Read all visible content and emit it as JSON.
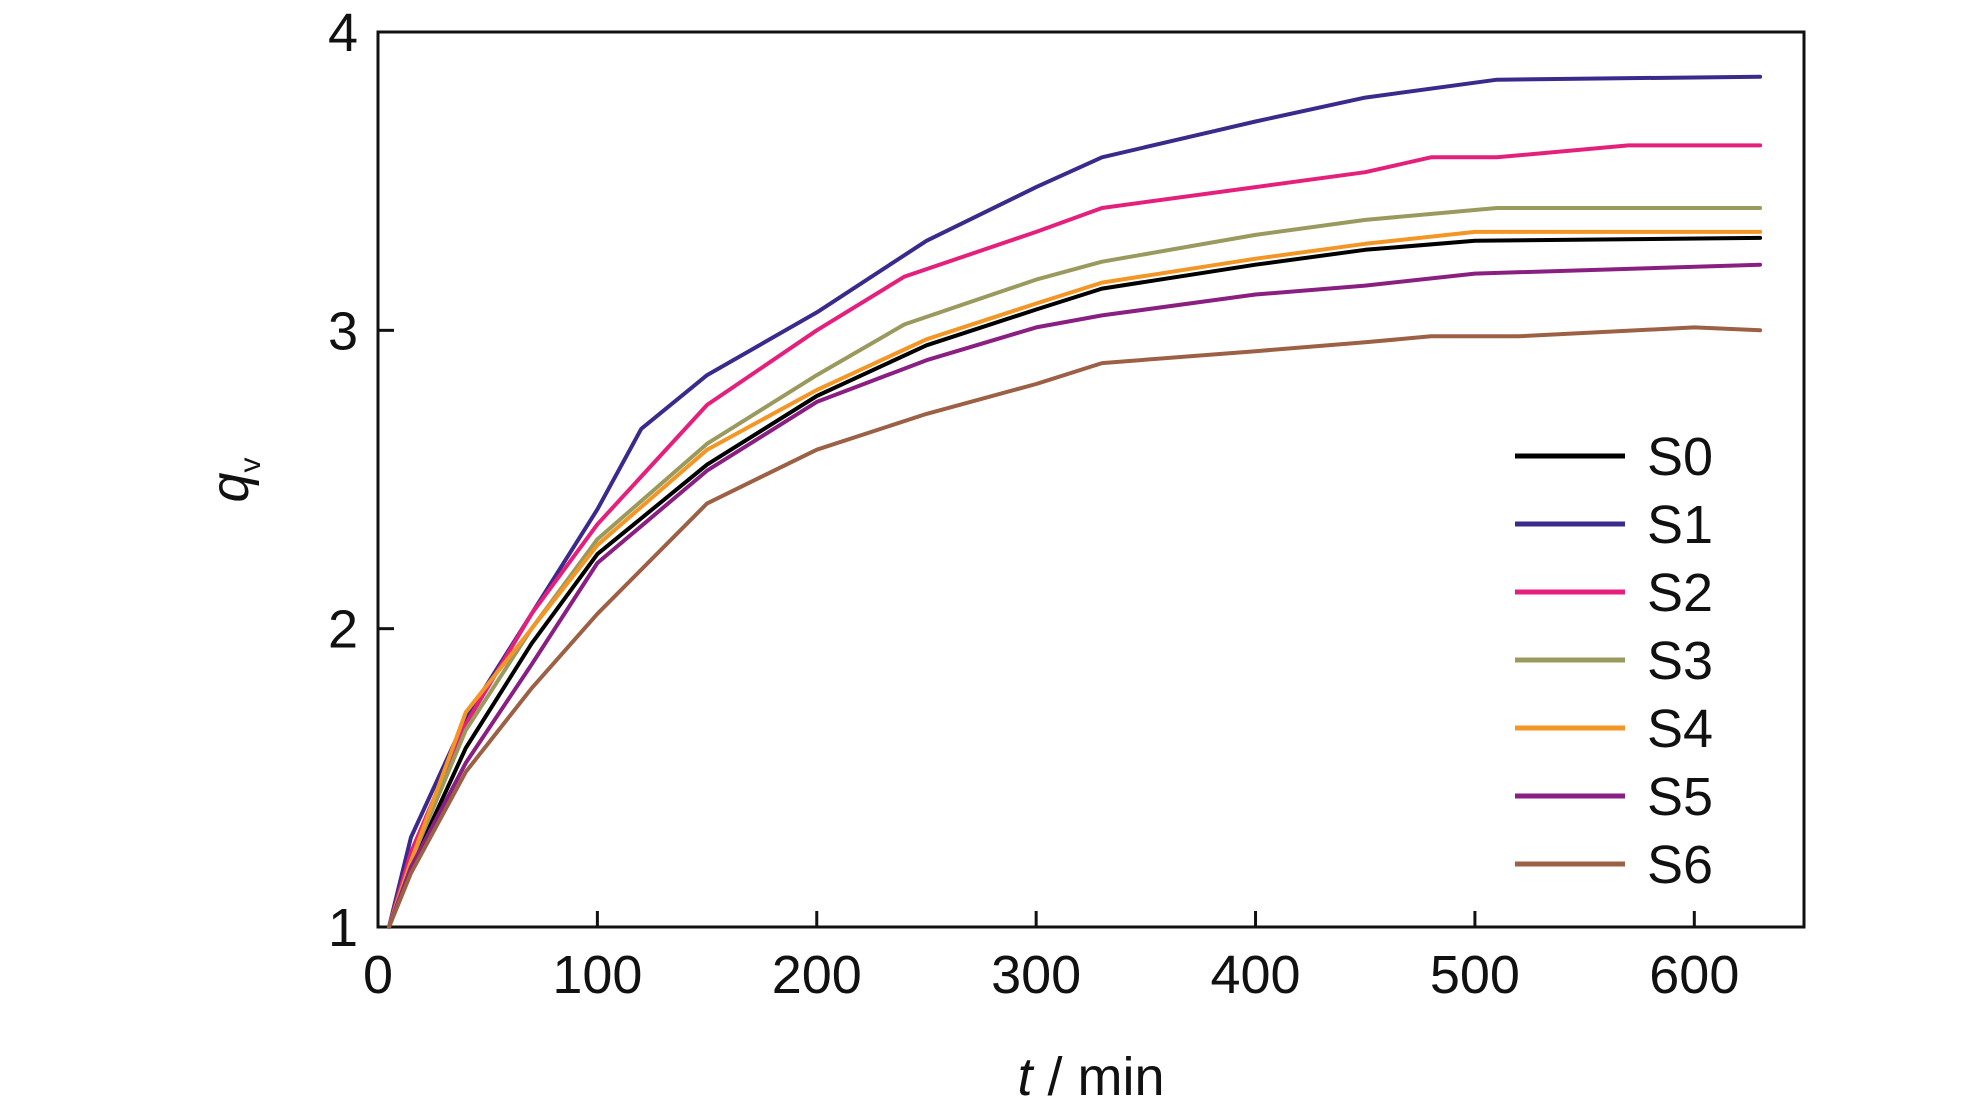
{
  "chart_data": {
    "type": "line",
    "title": "",
    "xlabel": {
      "var": "t",
      "unit": " / min"
    },
    "ylabel": {
      "var": "q",
      "sub": "v"
    },
    "xlim": [
      0,
      650
    ],
    "ylim": [
      1,
      4
    ],
    "xticks": [
      0,
      100,
      200,
      300,
      400,
      500,
      600
    ],
    "yticks": [
      1,
      2,
      3,
      4
    ],
    "grid": false,
    "legend_position": "right",
    "series": [
      {
        "name": "S0",
        "color": "#000000",
        "points": [
          [
            5,
            1.0
          ],
          [
            15,
            1.2
          ],
          [
            40,
            1.6
          ],
          [
            70,
            1.95
          ],
          [
            100,
            2.25
          ],
          [
            150,
            2.55
          ],
          [
            200,
            2.78
          ],
          [
            250,
            2.95
          ],
          [
            300,
            3.07
          ],
          [
            330,
            3.14
          ],
          [
            400,
            3.22
          ],
          [
            450,
            3.27
          ],
          [
            500,
            3.3
          ],
          [
            630,
            3.31
          ]
        ]
      },
      {
        "name": "S1",
        "color": "#3b2a8c",
        "points": [
          [
            5,
            1.0
          ],
          [
            15,
            1.3
          ],
          [
            40,
            1.7
          ],
          [
            70,
            2.05
          ],
          [
            100,
            2.4
          ],
          [
            120,
            2.67
          ],
          [
            150,
            2.85
          ],
          [
            200,
            3.06
          ],
          [
            250,
            3.3
          ],
          [
            300,
            3.48
          ],
          [
            330,
            3.58
          ],
          [
            400,
            3.7
          ],
          [
            450,
            3.78
          ],
          [
            510,
            3.84
          ],
          [
            630,
            3.85
          ]
        ]
      },
      {
        "name": "S2",
        "color": "#e5207c",
        "points": [
          [
            5,
            1.0
          ],
          [
            15,
            1.25
          ],
          [
            40,
            1.68
          ],
          [
            70,
            2.05
          ],
          [
            100,
            2.35
          ],
          [
            150,
            2.75
          ],
          [
            200,
            3.0
          ],
          [
            240,
            3.18
          ],
          [
            300,
            3.33
          ],
          [
            330,
            3.41
          ],
          [
            400,
            3.48
          ],
          [
            450,
            3.53
          ],
          [
            480,
            3.58
          ],
          [
            510,
            3.58
          ],
          [
            570,
            3.62
          ],
          [
            630,
            3.62
          ]
        ]
      },
      {
        "name": "S3",
        "color": "#9a9a5e",
        "points": [
          [
            5,
            1.0
          ],
          [
            15,
            1.22
          ],
          [
            40,
            1.66
          ],
          [
            70,
            2.0
          ],
          [
            100,
            2.3
          ],
          [
            150,
            2.62
          ],
          [
            200,
            2.85
          ],
          [
            240,
            3.02
          ],
          [
            300,
            3.17
          ],
          [
            330,
            3.23
          ],
          [
            400,
            3.32
          ],
          [
            450,
            3.37
          ],
          [
            510,
            3.41
          ],
          [
            630,
            3.41
          ]
        ]
      },
      {
        "name": "S4",
        "color": "#f39625",
        "points": [
          [
            5,
            1.0
          ],
          [
            15,
            1.22
          ],
          [
            40,
            1.72
          ],
          [
            70,
            2.0
          ],
          [
            100,
            2.28
          ],
          [
            150,
            2.6
          ],
          [
            200,
            2.8
          ],
          [
            250,
            2.97
          ],
          [
            300,
            3.09
          ],
          [
            330,
            3.16
          ],
          [
            400,
            3.24
          ],
          [
            450,
            3.29
          ],
          [
            500,
            3.33
          ],
          [
            630,
            3.33
          ]
        ]
      },
      {
        "name": "S5",
        "color": "#8a1f82",
        "points": [
          [
            5,
            1.0
          ],
          [
            15,
            1.2
          ],
          [
            40,
            1.55
          ],
          [
            70,
            1.88
          ],
          [
            100,
            2.22
          ],
          [
            150,
            2.53
          ],
          [
            200,
            2.76
          ],
          [
            250,
            2.9
          ],
          [
            300,
            3.01
          ],
          [
            330,
            3.05
          ],
          [
            400,
            3.12
          ],
          [
            450,
            3.15
          ],
          [
            500,
            3.19
          ],
          [
            630,
            3.22
          ]
        ]
      },
      {
        "name": "S6",
        "color": "#9c6045",
        "points": [
          [
            5,
            1.0
          ],
          [
            15,
            1.18
          ],
          [
            40,
            1.52
          ],
          [
            70,
            1.8
          ],
          [
            100,
            2.05
          ],
          [
            150,
            2.42
          ],
          [
            200,
            2.6
          ],
          [
            250,
            2.72
          ],
          [
            300,
            2.82
          ],
          [
            330,
            2.89
          ],
          [
            400,
            2.93
          ],
          [
            450,
            2.96
          ],
          [
            480,
            2.98
          ],
          [
            520,
            2.98
          ],
          [
            600,
            3.01
          ],
          [
            630,
            3.0
          ]
        ]
      }
    ]
  }
}
